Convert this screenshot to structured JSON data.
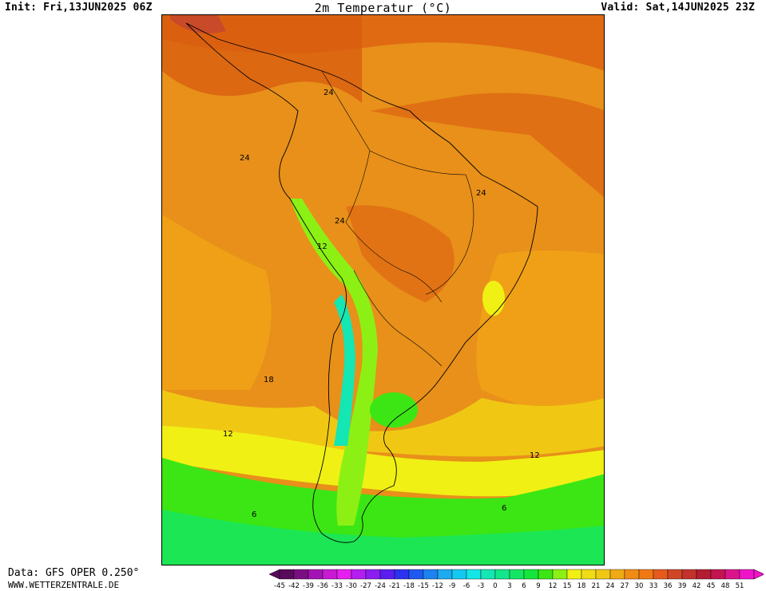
{
  "header": {
    "init": "Init: Fri,13JUN2025 06Z",
    "title": "2m Temperatur (°C)",
    "valid": "Valid: Sat,14JUN2025 23Z"
  },
  "map": {
    "region": "South America",
    "field": "2m temperature",
    "contour_labels": [
      "24",
      "24",
      "24",
      "24",
      "12",
      "18",
      "12",
      "12",
      "6",
      "6"
    ]
  },
  "footer": {
    "data_source": "Data: GFS OPER 0.250°",
    "website": "WWW.WETTERZENTRALE.DE"
  },
  "colorbar": {
    "ticks": [
      "-45",
      "-42",
      "-39",
      "-36",
      "-33",
      "-30",
      "-27",
      "-24",
      "-21",
      "-18",
      "-15",
      "-12",
      "-9",
      "-6",
      "-3",
      "0",
      "3",
      "6",
      "9",
      "12",
      "15",
      "18",
      "21",
      "24",
      "27",
      "30",
      "33",
      "36",
      "39",
      "42",
      "45",
      "48",
      "51"
    ],
    "colors": [
      "#5a0a5a",
      "#7a0f82",
      "#a414b4",
      "#c81ad2",
      "#e61ef0",
      "#b41ef0",
      "#8c1ef0",
      "#5a1ef0",
      "#2d32f0",
      "#1e5af0",
      "#1e82f0",
      "#1eaaf0",
      "#14c8f0",
      "#14e6e6",
      "#14e6b4",
      "#14e68c",
      "#14e664",
      "#14e63c",
      "#3ce614",
      "#8cf014",
      "#f0f014",
      "#f0dc14",
      "#f0c814",
      "#f0aa14",
      "#f08c14",
      "#f07814",
      "#e65a1e",
      "#d24628",
      "#c3322d",
      "#b41e32",
      "#c31450",
      "#dc148c",
      "#f014c8"
    ]
  }
}
